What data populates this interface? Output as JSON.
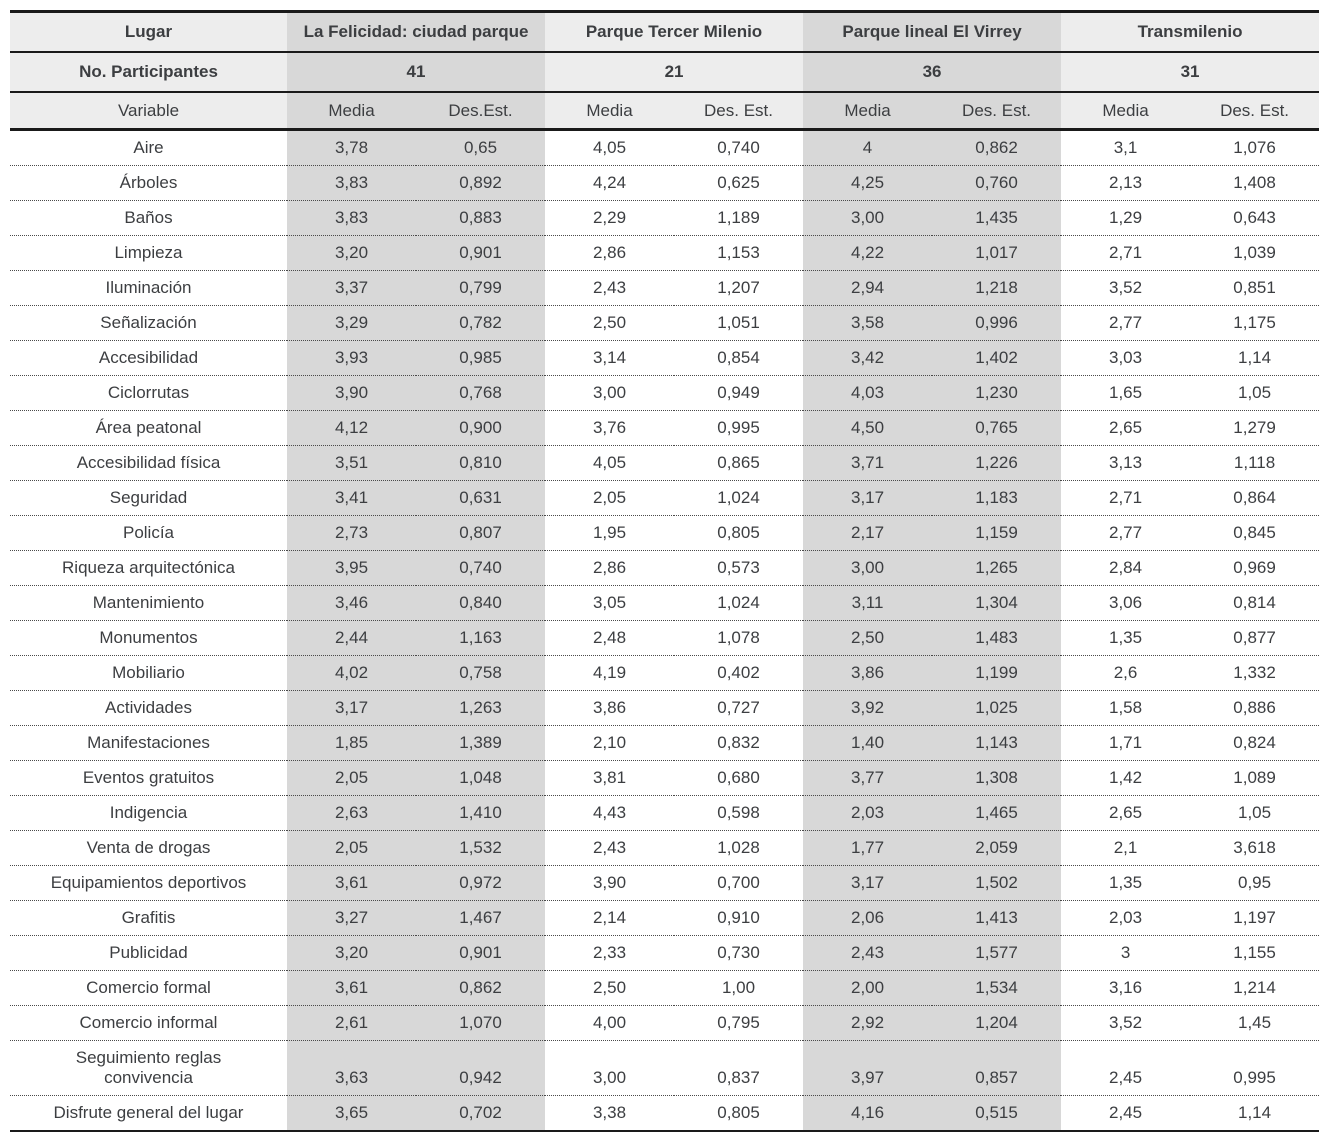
{
  "colors": {
    "text": "#3c3e41",
    "rule_line": "#1a1a1a",
    "header_bg": "#ededed",
    "shaded_column_bg": "#d8d8d8",
    "dotted_separator": "#4a4a4a"
  },
  "chart_data": {
    "type": "table",
    "title": "",
    "layout": {
      "shaded_groups": [
        "La Felicidad: ciudad parque",
        "Parque lineal El Virrey"
      ],
      "row_separators": "dotted"
    },
    "header_row1": {
      "label": "Lugar",
      "groups": [
        "La Felicidad: ciudad parque",
        "Parque Tercer Milenio",
        "Parque lineal El Virrey",
        "Transmilenio"
      ]
    },
    "header_row2": {
      "label": "No. Participantes",
      "values": [
        "41",
        "21",
        "36",
        "31"
      ]
    },
    "header_row3": {
      "label": "Variable",
      "subcolumns": [
        "Media",
        "Des.Est.",
        "Media",
        "Des. Est.",
        "Media",
        "Des. Est.",
        "Media",
        "Des. Est."
      ]
    },
    "rows": [
      {
        "variable": "Aire",
        "values": [
          "3,78",
          "0,65",
          "4,05",
          "0,740",
          "4",
          "0,862",
          "3,1",
          "1,076"
        ]
      },
      {
        "variable": "Árboles",
        "values": [
          "3,83",
          "0,892",
          "4,24",
          "0,625",
          "4,25",
          "0,760",
          "2,13",
          "1,408"
        ]
      },
      {
        "variable": "Baños",
        "values": [
          "3,83",
          "0,883",
          "2,29",
          "1,189",
          "3,00",
          "1,435",
          "1,29",
          "0,643"
        ]
      },
      {
        "variable": "Limpieza",
        "values": [
          "3,20",
          "0,901",
          "2,86",
          "1,153",
          "4,22",
          "1,017",
          "2,71",
          "1,039"
        ]
      },
      {
        "variable": "Iluminación",
        "values": [
          "3,37",
          "0,799",
          "2,43",
          "1,207",
          "2,94",
          "1,218",
          "3,52",
          "0,851"
        ]
      },
      {
        "variable": "Señalización",
        "values": [
          "3,29",
          "0,782",
          "2,50",
          "1,051",
          "3,58",
          "0,996",
          "2,77",
          "1,175"
        ]
      },
      {
        "variable": "Accesibilidad",
        "values": [
          "3,93",
          "0,985",
          "3,14",
          "0,854",
          "3,42",
          "1,402",
          "3,03",
          "1,14"
        ]
      },
      {
        "variable": "Ciclorrutas",
        "values": [
          "3,90",
          "0,768",
          "3,00",
          "0,949",
          "4,03",
          "1,230",
          "1,65",
          "1,05"
        ]
      },
      {
        "variable": "Área peatonal",
        "values": [
          "4,12",
          "0,900",
          "3,76",
          "0,995",
          "4,50",
          "0,765",
          "2,65",
          "1,279"
        ]
      },
      {
        "variable": "Accesibilidad física",
        "values": [
          "3,51",
          "0,810",
          "4,05",
          "0,865",
          "3,71",
          "1,226",
          "3,13",
          "1,118"
        ]
      },
      {
        "variable": "Seguridad",
        "values": [
          "3,41",
          "0,631",
          "2,05",
          "1,024",
          "3,17",
          "1,183",
          "2,71",
          "0,864"
        ]
      },
      {
        "variable": "Policía",
        "values": [
          "2,73",
          "0,807",
          "1,95",
          "0,805",
          "2,17",
          "1,159",
          "2,77",
          "0,845"
        ]
      },
      {
        "variable": "Riqueza arquitectónica",
        "values": [
          "3,95",
          "0,740",
          "2,86",
          "0,573",
          "3,00",
          "1,265",
          "2,84",
          "0,969"
        ]
      },
      {
        "variable": "Mantenimiento",
        "values": [
          "3,46",
          "0,840",
          "3,05",
          "1,024",
          "3,11",
          "1,304",
          "3,06",
          "0,814"
        ]
      },
      {
        "variable": "Monumentos",
        "values": [
          "2,44",
          "1,163",
          "2,48",
          "1,078",
          "2,50",
          "1,483",
          "1,35",
          "0,877"
        ]
      },
      {
        "variable": "Mobiliario",
        "values": [
          "4,02",
          "0,758",
          "4,19",
          "0,402",
          "3,86",
          "1,199",
          "2,6",
          "1,332"
        ]
      },
      {
        "variable": "Actividades",
        "values": [
          "3,17",
          "1,263",
          "3,86",
          "0,727",
          "3,92",
          "1,025",
          "1,58",
          "0,886"
        ]
      },
      {
        "variable": "Manifestaciones",
        "values": [
          "1,85",
          "1,389",
          "2,10",
          "0,832",
          "1,40",
          "1,143",
          "1,71",
          "0,824"
        ]
      },
      {
        "variable": "Eventos gratuitos",
        "values": [
          "2,05",
          "1,048",
          "3,81",
          "0,680",
          "3,77",
          "1,308",
          "1,42",
          "1,089"
        ]
      },
      {
        "variable": "Indigencia",
        "values": [
          "2,63",
          "1,410",
          "4,43",
          "0,598",
          "2,03",
          "1,465",
          "2,65",
          "1,05"
        ]
      },
      {
        "variable": "Venta de drogas",
        "values": [
          "2,05",
          "1,532",
          "2,43",
          "1,028",
          "1,77",
          "2,059",
          "2,1",
          "3,618"
        ]
      },
      {
        "variable": "Equipamientos deportivos",
        "values": [
          "3,61",
          "0,972",
          "3,90",
          "0,700",
          "3,17",
          "1,502",
          "1,35",
          "0,95"
        ]
      },
      {
        "variable": "Grafitis",
        "values": [
          "3,27",
          "1,467",
          "2,14",
          "0,910",
          "2,06",
          "1,413",
          "2,03",
          "1,197"
        ]
      },
      {
        "variable": "Publicidad",
        "values": [
          "3,20",
          "0,901",
          "2,33",
          "0,730",
          "2,43",
          "1,577",
          "3",
          "1,155"
        ]
      },
      {
        "variable": "Comercio formal",
        "values": [
          "3,61",
          "0,862",
          "2,50",
          "1,00",
          "2,00",
          "1,534",
          "3,16",
          "1,214"
        ]
      },
      {
        "variable": "Comercio informal",
        "values": [
          "2,61",
          "1,070",
          "4,00",
          "0,795",
          "2,92",
          "1,204",
          "3,52",
          "1,45"
        ]
      },
      {
        "variable": "Seguimiento reglas convivencia",
        "values": [
          "3,63",
          "0,942",
          "3,00",
          "0,837",
          "3,97",
          "0,857",
          "2,45",
          "0,995"
        ]
      },
      {
        "variable": "Disfrute general del lugar",
        "values": [
          "3,65",
          "0,702",
          "3,38",
          "0,805",
          "4,16",
          "0,515",
          "2,45",
          "1,14"
        ]
      }
    ]
  }
}
